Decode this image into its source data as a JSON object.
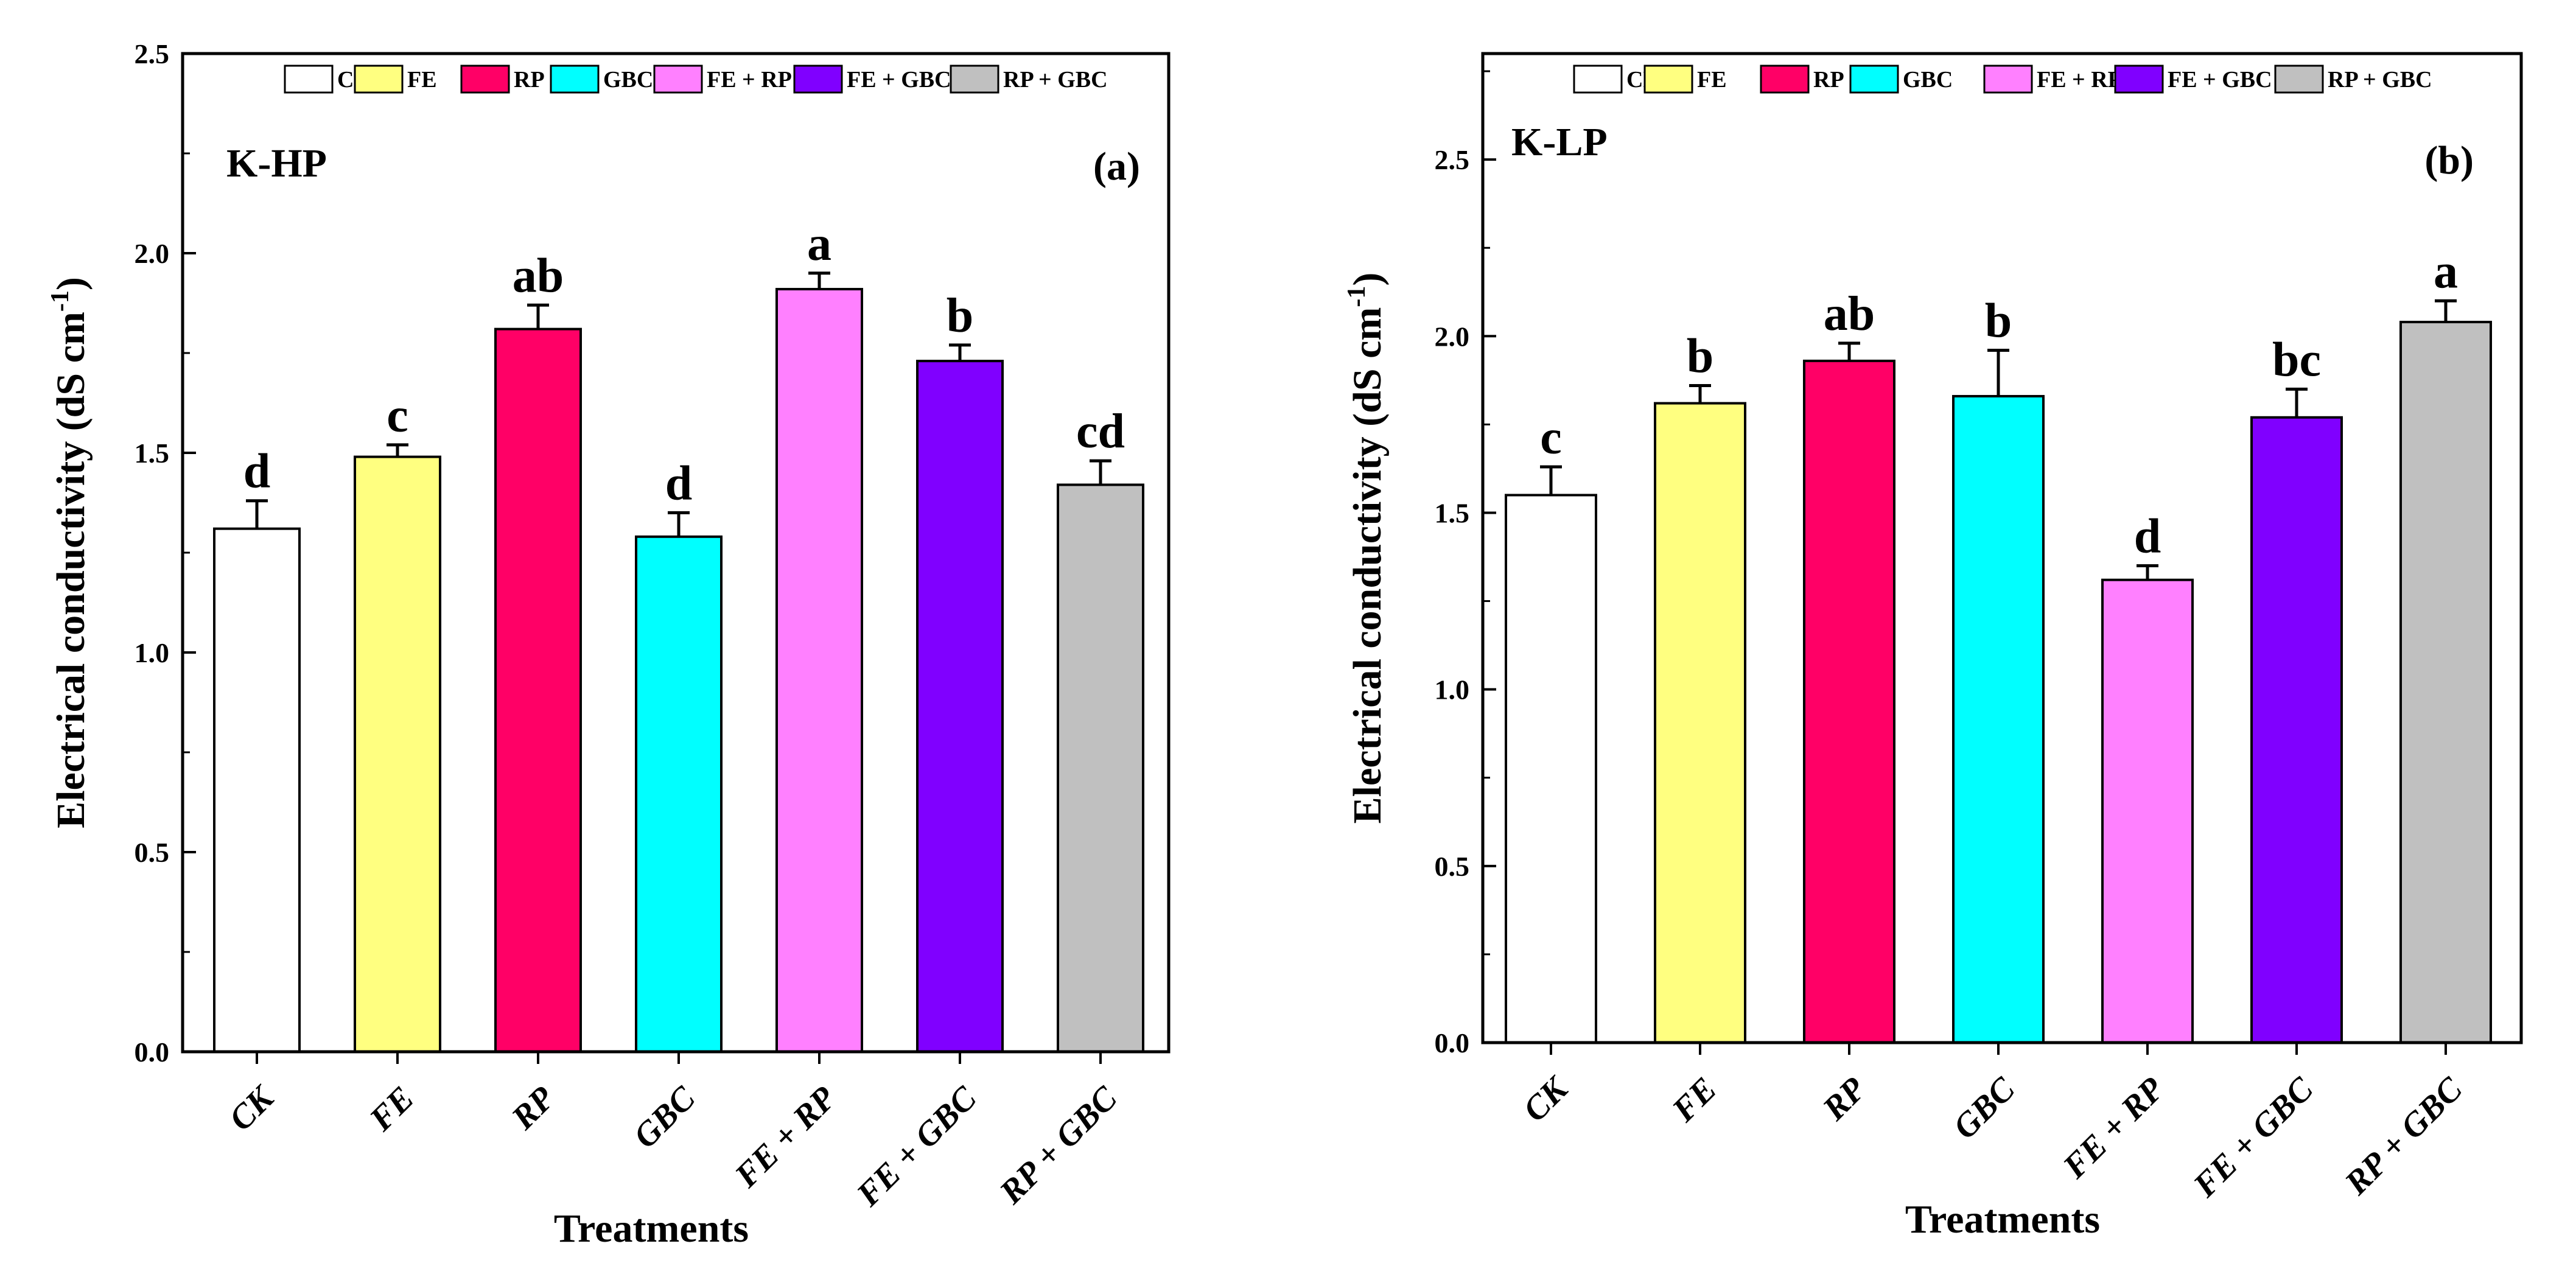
{
  "chart_data": [
    {
      "type": "bar",
      "panel_label": "(a)",
      "site_label": "K-HP",
      "xlabel": "Treatments",
      "ylabel": "Electrical conductivity (dS cm",
      "ylabel_sup": "-1",
      "ylabel_close": ")",
      "ylim": [
        0,
        2.5
      ],
      "yticks": [
        "0.0",
        "0.5",
        "1.0",
        "1.5",
        "2.0",
        "2.5"
      ],
      "ytick_values": [
        0,
        0.5,
        1.0,
        1.5,
        2.0,
        2.5
      ],
      "categories": [
        "CK",
        "FE",
        "RP",
        "GBC",
        "FE + RP",
        "FE + GBC",
        "RP + GBC"
      ],
      "values": [
        1.31,
        1.49,
        1.81,
        1.29,
        1.91,
        1.73,
        1.42
      ],
      "errors": [
        0.07,
        0.03,
        0.06,
        0.06,
        0.04,
        0.04,
        0.06
      ],
      "significance": [
        "d",
        "c",
        "ab",
        "d",
        "a",
        "b",
        "cd"
      ],
      "colors": [
        "#ffffff",
        "#ffff80",
        "#ff0066",
        "#00ffff",
        "#ff80ff",
        "#8000ff",
        "#c0c0c0"
      ],
      "legend_position": "top"
    },
    {
      "type": "bar",
      "panel_label": "(b)",
      "site_label": "K-LP",
      "xlabel": "Treatments",
      "ylabel": "Electrical conductivity (dS cm",
      "ylabel_sup": "-1",
      "ylabel_close": ")",
      "ylim": [
        0,
        2.8
      ],
      "yticks": [
        "0.0",
        "0.5",
        "1.0",
        "1.5",
        "2.0",
        "2.5"
      ],
      "ytick_values": [
        0,
        0.5,
        1.0,
        1.5,
        2.0,
        2.5
      ],
      "categories": [
        "CK",
        "FE",
        "RP",
        "GBC",
        "FE + RP",
        "FE + GBC",
        "RP + GBC"
      ],
      "values": [
        1.55,
        1.81,
        1.93,
        1.83,
        1.31,
        1.77,
        2.04
      ],
      "errors": [
        0.08,
        0.05,
        0.05,
        0.13,
        0.04,
        0.08,
        0.06
      ],
      "significance": [
        "c",
        "b",
        "ab",
        "b",
        "d",
        "bc",
        "a"
      ],
      "colors": [
        "#ffffff",
        "#ffff80",
        "#ff0066",
        "#00ffff",
        "#ff80ff",
        "#8000ff",
        "#c0c0c0"
      ],
      "legend_position": "top"
    }
  ]
}
